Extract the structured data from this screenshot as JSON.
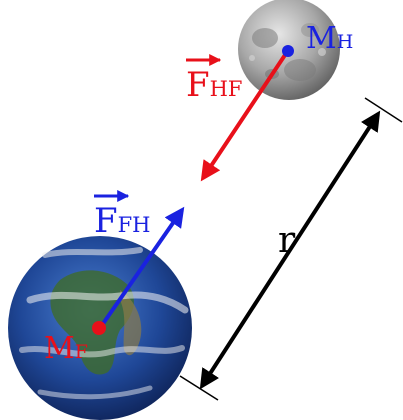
{
  "labels": {
    "force_hf": {
      "main": "F",
      "sub": "HF"
    },
    "force_fh": {
      "main": "F",
      "sub": "FH"
    },
    "moon_mass": {
      "main": "M",
      "sub": "H"
    },
    "earth_mass": {
      "main": "M",
      "sub": "F"
    },
    "distance": "r"
  },
  "colors": {
    "force_hf": "#e8101a",
    "force_fh": "#1a22e0",
    "distance": "#000000",
    "moon_point": "#1a22e0",
    "earth_point": "#e8101a",
    "moon_mass_text": "#1a22e0",
    "earth_mass_text": "#e8101a"
  },
  "bodies": {
    "moon": {
      "icon": "moon-icon"
    },
    "earth": {
      "icon": "earth-icon"
    }
  }
}
